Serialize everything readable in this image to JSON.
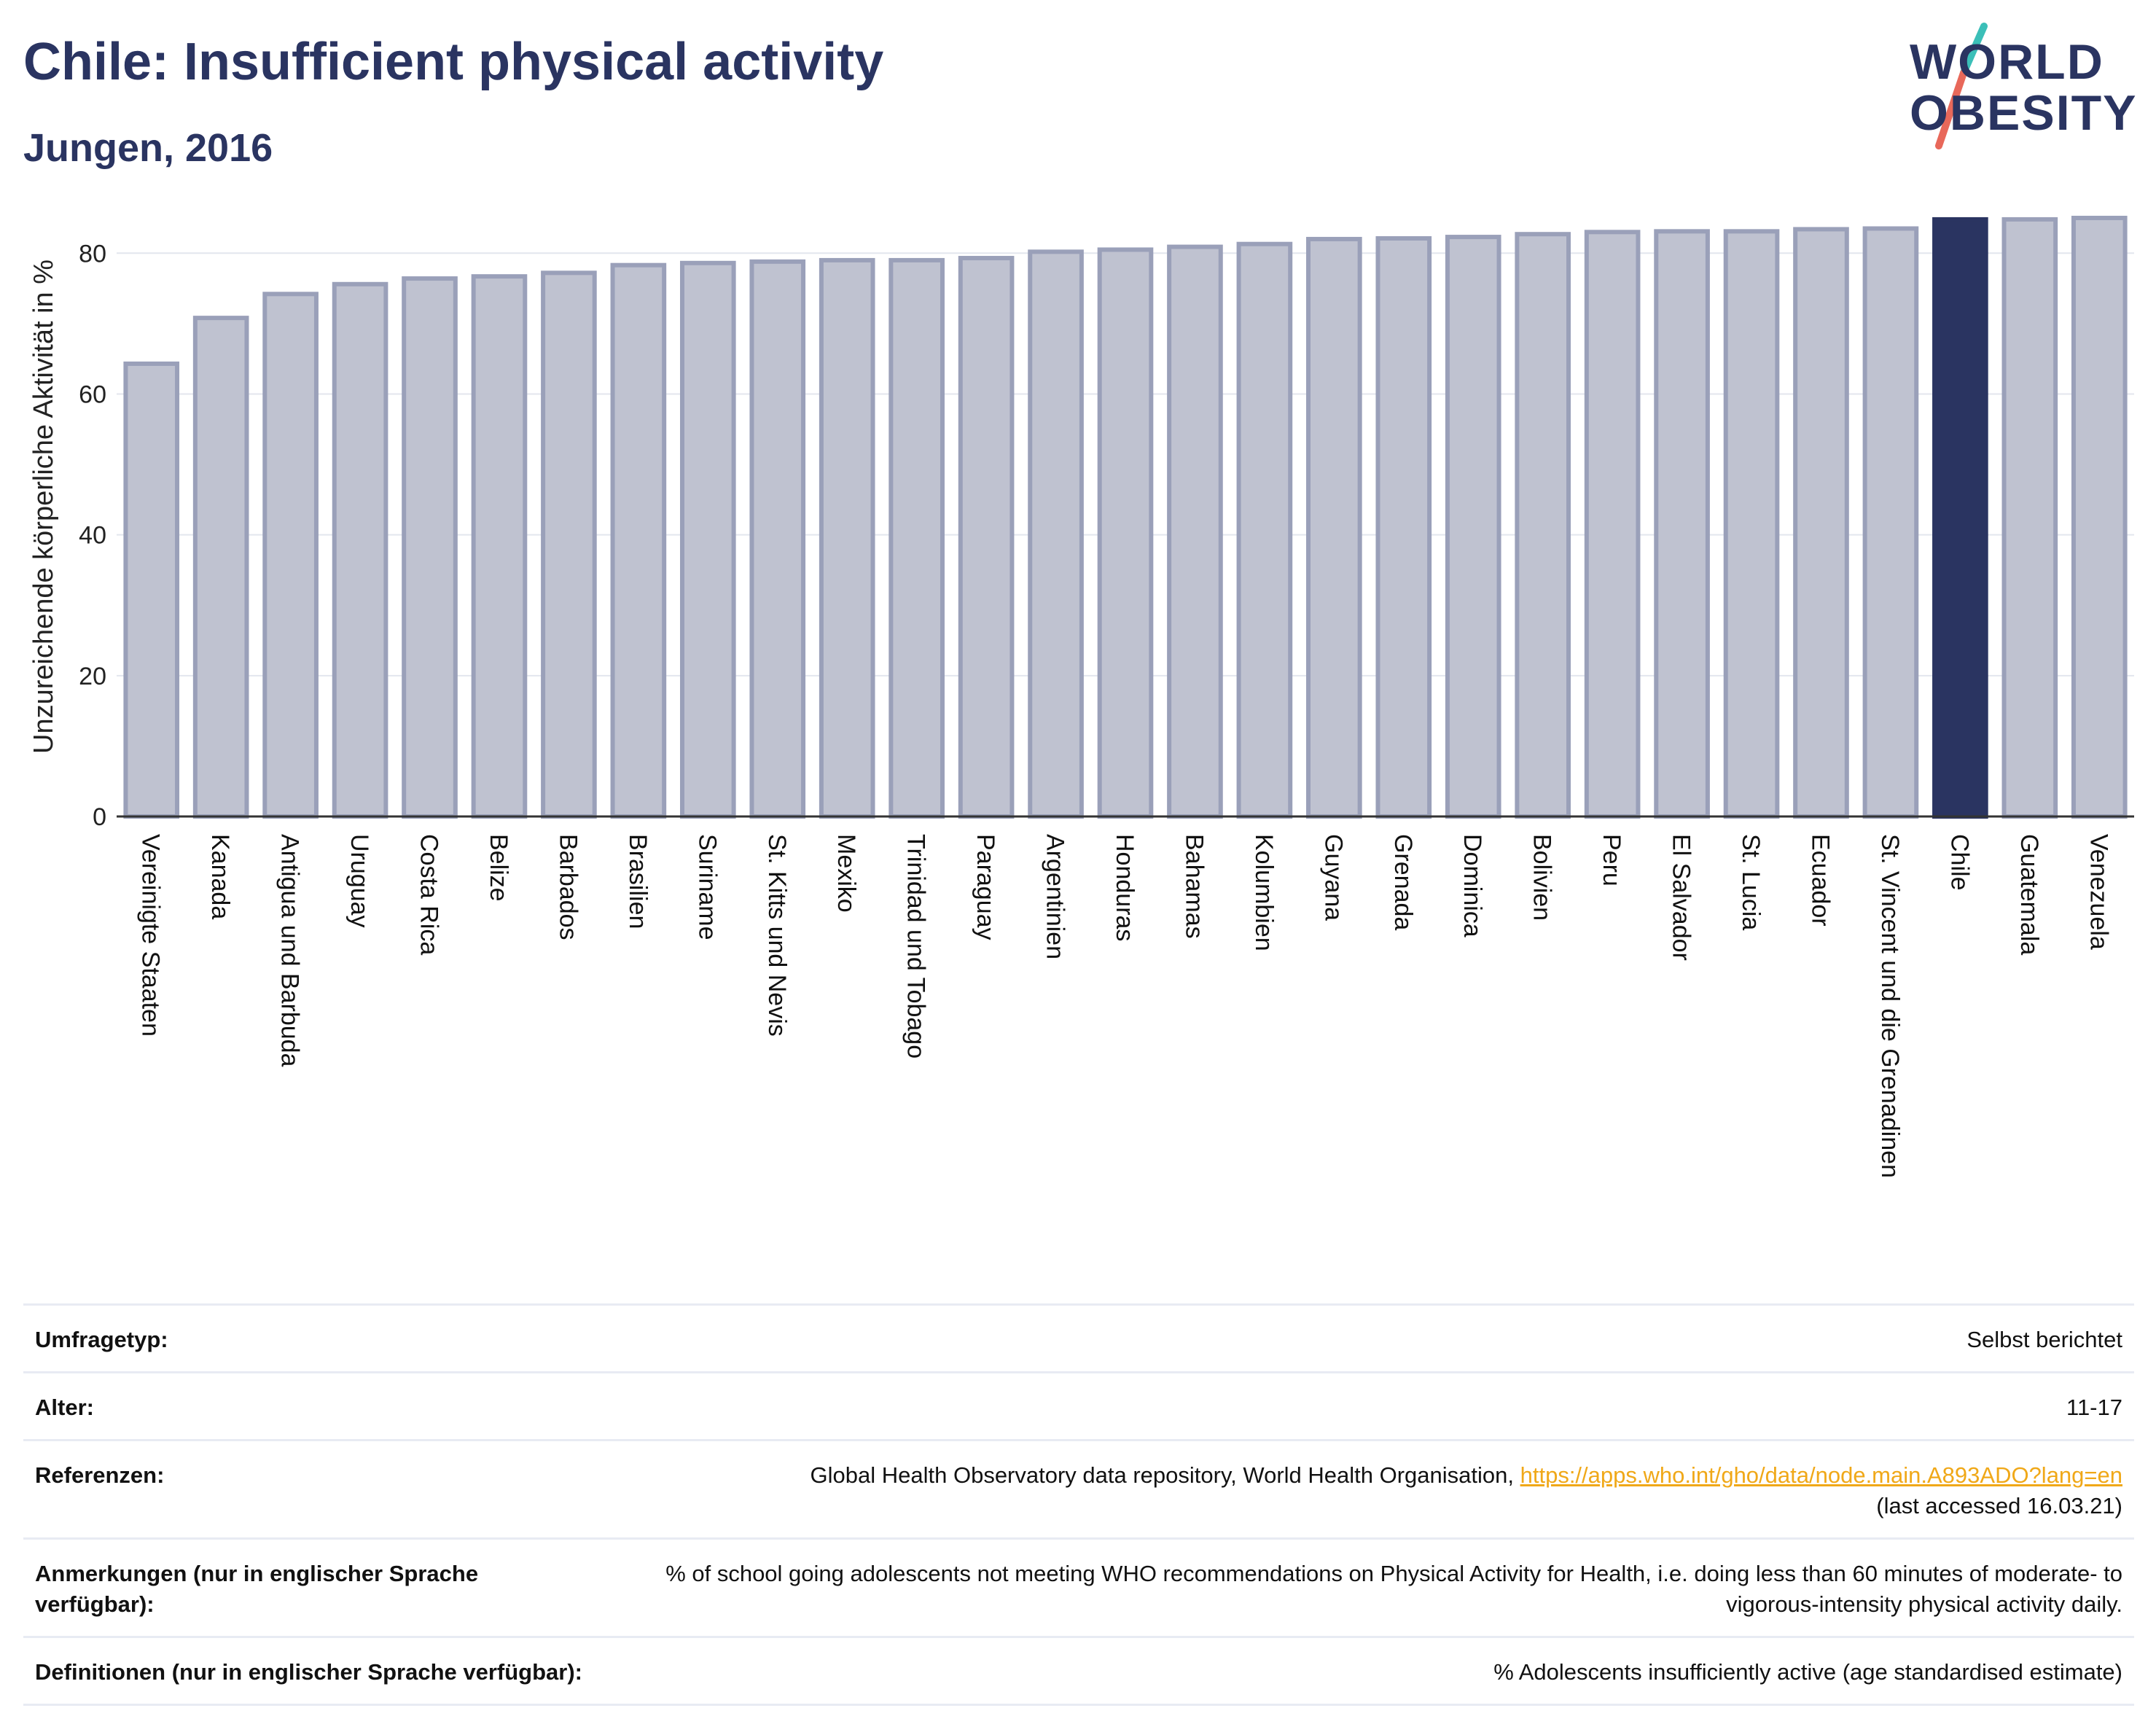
{
  "title": "Chile: Insufficient physical activity",
  "subtitle": "Jungen, 2016",
  "logo": {
    "line1": "WORLD",
    "line2": "OBESITY"
  },
  "colors": {
    "bar": "#bfc2d0",
    "bar_edge": "#9aa0b9",
    "highlight": "#2a3461",
    "grid": "#e3e6ee",
    "link": "#f0a818"
  },
  "chart_data": {
    "type": "bar",
    "title": "Chile: Insufficient physical activity",
    "ylabel": "Unzureichende körperliche Aktivität in %",
    "xlabel": "",
    "ylim": [
      0,
      88
    ],
    "yticks": [
      0,
      20,
      40,
      60,
      80
    ],
    "grid": true,
    "highlight": "Chile",
    "categories": [
      "Vereinigte Staaten",
      "Kanada",
      "Antigua und Barbuda",
      "Uruguay",
      "Costa Rica",
      "Belize",
      "Barbados",
      "Brasilien",
      "Suriname",
      "St. Kitts und Nevis",
      "Mexiko",
      "Trinidad und Tobago",
      "Paraguay",
      "Argentinien",
      "Honduras",
      "Bahamas",
      "Kolumbien",
      "Guyana",
      "Grenada",
      "Dominica",
      "Bolivien",
      "Peru",
      "El Salvador",
      "St. Lucia",
      "Ecuador",
      "St. Vincent und die Grenadinen",
      "Chile",
      "Guatemala",
      "Venezuela"
    ],
    "values": [
      64.3,
      70.8,
      74.2,
      75.6,
      76.4,
      76.7,
      77.2,
      78.3,
      78.6,
      78.8,
      79.0,
      79.0,
      79.3,
      80.2,
      80.5,
      80.9,
      81.3,
      82.0,
      82.1,
      82.3,
      82.7,
      83.0,
      83.1,
      83.1,
      83.4,
      83.5,
      84.8,
      84.8,
      85.0
    ]
  },
  "info": [
    {
      "key": "Umfragetyp:",
      "value": "Selbst berichtet"
    },
    {
      "key": "Alter:",
      "value": "11-17"
    },
    {
      "key": "Referenzen:",
      "value": "Global Health Observatory data repository, World Health Organisation, ",
      "link": "https://apps.who.int/gho/data/node.main.A893ADO?lang=en",
      "value2": "(last accessed 16.03.21)"
    },
    {
      "key": "Anmerkungen (nur in englischer Sprache verfügbar):",
      "value": "% of school going adolescents not meeting WHO recommendations on Physical Activity for Health, i.e. doing less than 60 minutes of moderate- to vigorous-intensity physical activity daily."
    },
    {
      "key": "Definitionen (nur in englischer Sprache verfügbar):",
      "value": "% Adolescents insufficiently active (age standardised estimate)"
    }
  ]
}
